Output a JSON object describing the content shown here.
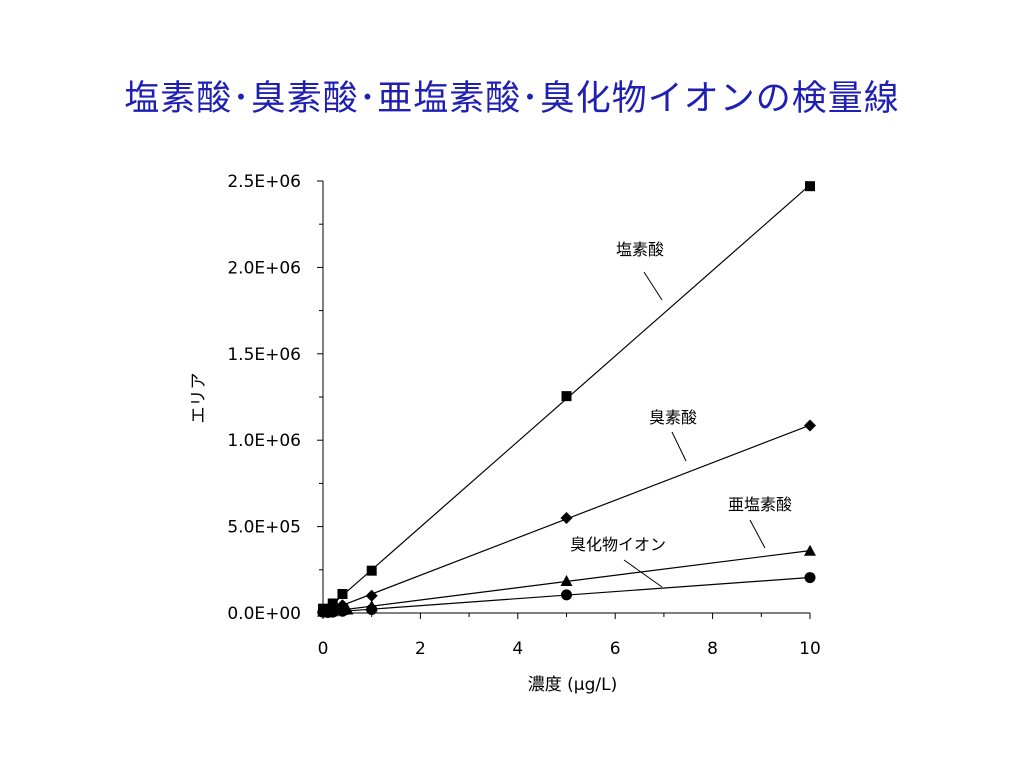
{
  "title": "塩素酸･臭素酸･亜塩素酸･臭化物イオンの検量線",
  "colors": {
    "title": "#1f1fb4",
    "lines": "#000000",
    "markers": "#000000"
  },
  "chart_data": {
    "type": "scatter",
    "xlabel": "濃度 (μg/L)",
    "ylabel": "エリア",
    "xlim": [
      0,
      10
    ],
    "ylim": [
      0,
      2500000
    ],
    "x_ticks": [
      "0",
      "2",
      "4",
      "6",
      "8",
      "10"
    ],
    "y_ticks": [
      "0.0E+00",
      "5.0E+05",
      "1.0E+06",
      "1.5E+06",
      "2.0E+06",
      "2.5E+06"
    ],
    "grid": false,
    "legend": "none",
    "series": [
      {
        "name": "塩素酸",
        "marker": "square",
        "trendline": true,
        "points": [
          [
            0,
            25000
          ],
          [
            0.1,
            12000
          ],
          [
            0.2,
            30000
          ],
          [
            0.2,
            55000
          ],
          [
            0.4,
            110000
          ],
          [
            1,
            245000
          ],
          [
            5,
            1255000
          ],
          [
            10,
            2470000
          ]
        ]
      },
      {
        "name": "臭素酸",
        "marker": "diamond",
        "trendline": true,
        "points": [
          [
            0,
            10000
          ],
          [
            0.1,
            10000
          ],
          [
            0.2,
            22000
          ],
          [
            0.4,
            45000
          ],
          [
            1,
            100000
          ],
          [
            5,
            550000
          ],
          [
            10,
            1085000
          ]
        ]
      },
      {
        "name": "亜塩素酸",
        "marker": "triangle",
        "trendline": true,
        "points": [
          [
            0,
            8000
          ],
          [
            0.1,
            5000
          ],
          [
            0.2,
            10000
          ],
          [
            0.4,
            18000
          ],
          [
            0.5,
            20000
          ],
          [
            1,
            40000
          ],
          [
            5,
            185000
          ],
          [
            10,
            360000
          ]
        ]
      },
      {
        "name": "臭化物イオン",
        "marker": "circle",
        "trendline": true,
        "points": [
          [
            0,
            5000
          ],
          [
            0.1,
            3000
          ],
          [
            0.2,
            5000
          ],
          [
            0.4,
            10000
          ],
          [
            1,
            20000
          ],
          [
            5,
            105000
          ],
          [
            10,
            205000
          ]
        ]
      }
    ]
  }
}
